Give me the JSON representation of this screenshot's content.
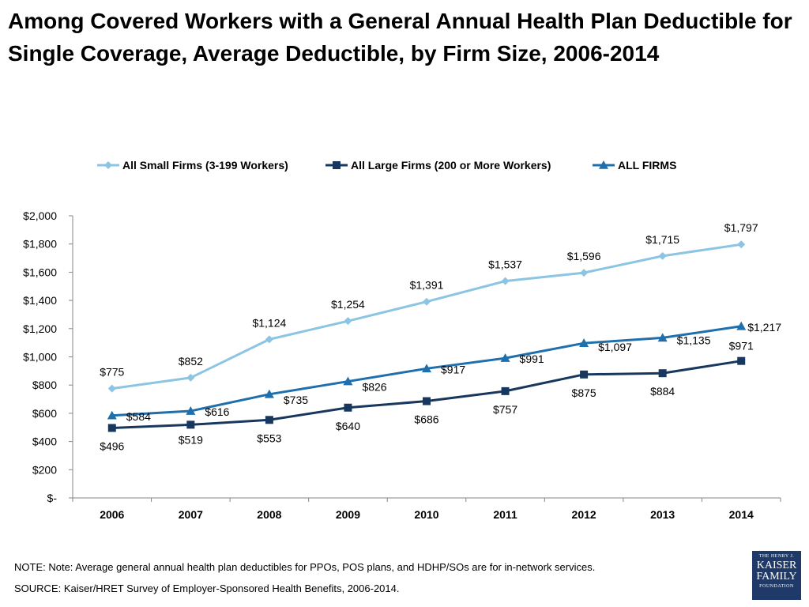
{
  "title": "Among Covered Workers with a General Annual Health Plan Deductible for Single Coverage, Average Deductible, by Firm Size, 2006-2014",
  "note": "NOTE: Note: Average general annual health plan deductibles for PPOs, POS plans, and HDHP/SOs are for in-network services.",
  "source": "SOURCE:  Kaiser/HRET Survey of Employer-Sponsored Health Benefits, 2006-2014.",
  "logo": {
    "line1": "THE HENRY J.",
    "line2": "KAISER",
    "line3": "FAMILY",
    "line4": "FOUNDATION"
  },
  "chart_data": {
    "type": "line",
    "title": "",
    "xlabel": "",
    "ylabel": "",
    "ylim": [
      0,
      2000
    ],
    "yticks": [
      0,
      200,
      400,
      600,
      800,
      1000,
      1200,
      1400,
      1600,
      1800,
      2000
    ],
    "ytick_labels": [
      "$-",
      "$200",
      "$400",
      "$600",
      "$800",
      "$1,000",
      "$1,200",
      "$1,400",
      "$1,600",
      "$1,800",
      "$2,000"
    ],
    "categories": [
      "2006",
      "2007",
      "2008",
      "2009",
      "2010",
      "2011",
      "2012",
      "2013",
      "2014"
    ],
    "legend_position": "top",
    "series": [
      {
        "name": "All Small Firms (3-199 Workers)",
        "color": "#8cc4e4",
        "marker": "diamond",
        "values": [
          775,
          852,
          1124,
          1254,
          1391,
          1537,
          1596,
          1715,
          1797
        ],
        "labels": [
          "$775",
          "$852",
          "$1,124",
          "$1,254",
          "$1,391",
          "$1,537",
          "$1,596",
          "$1,715",
          "$1,797"
        ]
      },
      {
        "name": "All Large Firms (200 or More Workers)",
        "color": "#17375e",
        "marker": "square",
        "values": [
          496,
          519,
          553,
          640,
          686,
          757,
          875,
          884,
          971
        ],
        "labels": [
          "$496",
          "$519",
          "$553",
          "$640",
          "$686",
          "$757",
          "$875",
          "$884",
          "$971"
        ]
      },
      {
        "name": "ALL FIRMS",
        "color": "#1f6fad",
        "marker": "triangle",
        "values": [
          584,
          616,
          735,
          826,
          917,
          991,
          1097,
          1135,
          1217
        ],
        "labels": [
          "$584",
          "$616",
          "$735",
          "$826",
          "$917",
          "$991",
          "$1,097",
          "$1,135",
          "$1,217"
        ]
      }
    ]
  }
}
